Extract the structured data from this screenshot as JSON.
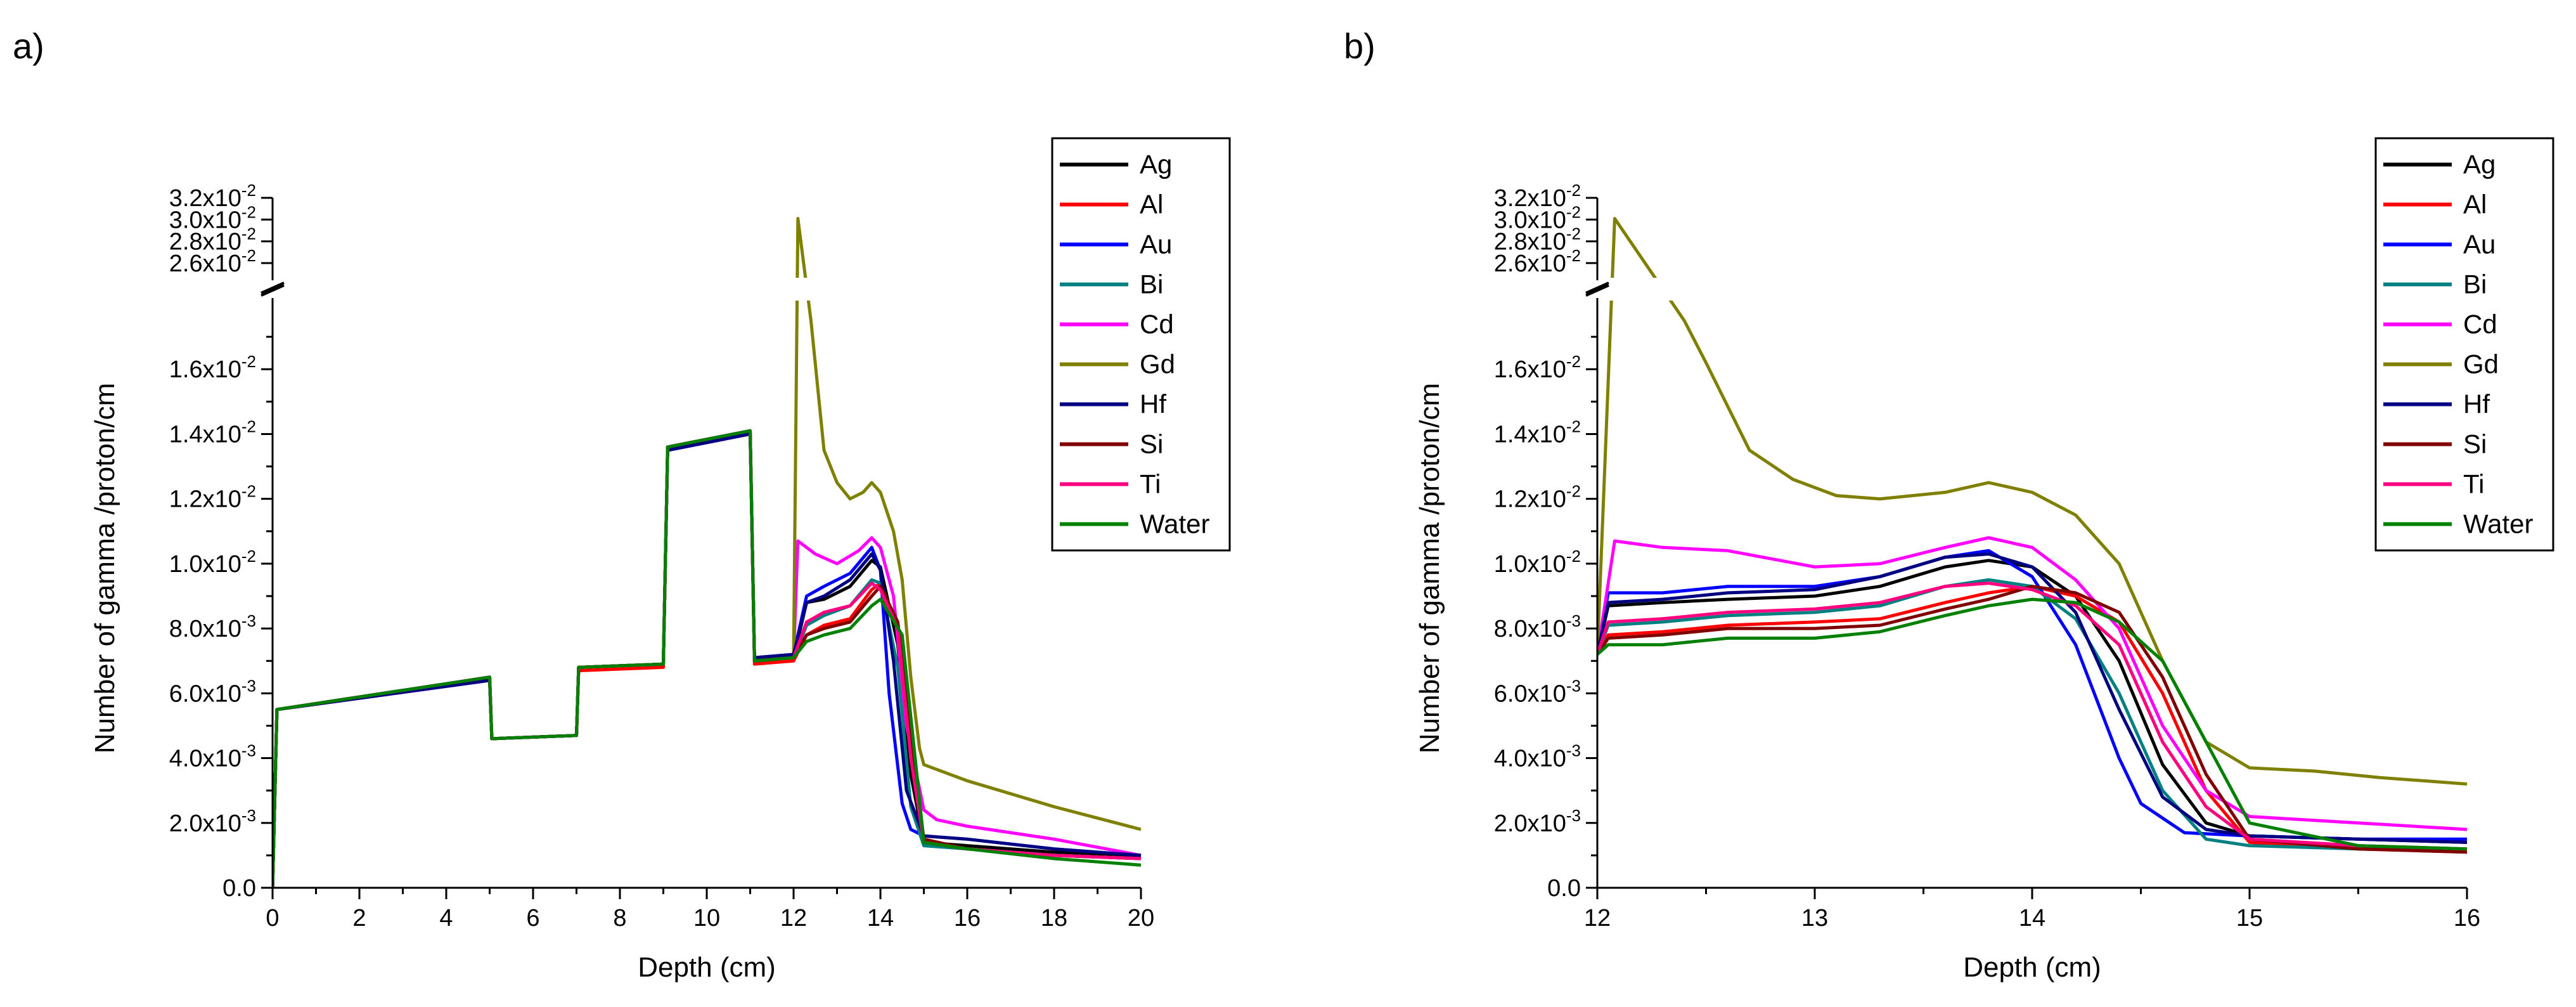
{
  "figure": {
    "ytick_labels": [
      {
        "value": 0,
        "label": "0.0"
      },
      {
        "value": 0.002,
        "mant": "2.0x10",
        "exp": "-3"
      },
      {
        "value": 0.004,
        "mant": "4.0x10",
        "exp": "-3"
      },
      {
        "value": 0.006,
        "mant": "6.0x10",
        "exp": "-3"
      },
      {
        "value": 0.008,
        "mant": "8.0x10",
        "exp": "-3"
      },
      {
        "value": 0.01,
        "mant": "1.0x10",
        "exp": "-2"
      },
      {
        "value": 0.012,
        "mant": "1.2x10",
        "exp": "-2"
      },
      {
        "value": 0.014,
        "mant": "1.4x10",
        "exp": "-2"
      },
      {
        "value": 0.016,
        "mant": "1.6x10",
        "exp": "-2"
      }
    ],
    "ytick_labels_upper": [
      {
        "value": 0.026,
        "mant": "2.6x10",
        "exp": "-2"
      },
      {
        "value": 0.028,
        "mant": "2.8x10",
        "exp": "-2"
      },
      {
        "value": 0.03,
        "mant": "3.0x10",
        "exp": "-2"
      },
      {
        "value": 0.032,
        "mant": "3.2x10",
        "exp": "-2"
      }
    ]
  },
  "chart_data": [
    {
      "type": "line",
      "panel_label": "a)",
      "xlabel": "Depth (cm)",
      "ylabel": "Number of gamma /proton/cm",
      "xlim": [
        0,
        20
      ],
      "ylim_lower": [
        0,
        0.018
      ],
      "ylim_upper": [
        0.025,
        0.032
      ],
      "axis_break": true,
      "xticks": [
        0,
        2,
        4,
        6,
        8,
        10,
        12,
        14,
        16,
        18,
        20
      ],
      "legend_position": "top-right",
      "grid": false,
      "series": [
        {
          "name": "Ag",
          "color": "#000000",
          "x": [
            0,
            0.1,
            5,
            5.05,
            7,
            7.05,
            9,
            9.1,
            11,
            11.1,
            12,
            12.3,
            12.7,
            13.3,
            13.8,
            14.0,
            14.4,
            14.7,
            15.0,
            16,
            18,
            20
          ],
          "y": [
            0,
            0.0055,
            0.0065,
            0.0046,
            0.0047,
            0.0068,
            0.0069,
            0.0136,
            0.0141,
            0.007,
            0.0071,
            0.0088,
            0.0089,
            0.0093,
            0.0101,
            0.0099,
            0.0075,
            0.0035,
            0.0014,
            0.0013,
            0.0011,
            0.001
          ]
        },
        {
          "name": "Al",
          "color": "#ff0000",
          "x": [
            0,
            0.1,
            5,
            5.05,
            7,
            7.05,
            9,
            9.1,
            11,
            11.1,
            12,
            12.3,
            12.7,
            13.3,
            13.8,
            14.0,
            14.4,
            14.7,
            15.0,
            16,
            18,
            20
          ],
          "y": [
            0,
            0.0055,
            0.0064,
            0.0046,
            0.0047,
            0.0067,
            0.0068,
            0.0135,
            0.014,
            0.0069,
            0.007,
            0.0078,
            0.0081,
            0.0083,
            0.0092,
            0.0094,
            0.008,
            0.0045,
            0.0014,
            0.0012,
            0.001,
            0.0009
          ]
        },
        {
          "name": "Au",
          "color": "#0000ff",
          "x": [
            0,
            0.1,
            5,
            5.05,
            7,
            7.05,
            9,
            9.1,
            11,
            11.1,
            12,
            12.3,
            12.7,
            13.3,
            13.8,
            14.0,
            14.2,
            14.5,
            14.7,
            15.0,
            16,
            18,
            20
          ],
          "y": [
            0,
            0.0055,
            0.0064,
            0.0046,
            0.0047,
            0.0068,
            0.0069,
            0.0135,
            0.014,
            0.0071,
            0.0072,
            0.009,
            0.0093,
            0.0097,
            0.0105,
            0.0098,
            0.006,
            0.0026,
            0.0018,
            0.0016,
            0.0015,
            0.0012,
            0.001
          ]
        },
        {
          "name": "Bi",
          "color": "#008080",
          "x": [
            0,
            0.1,
            5,
            5.05,
            7,
            7.05,
            9,
            9.1,
            11,
            11.1,
            12,
            12.3,
            12.7,
            13.3,
            13.8,
            14.0,
            14.4,
            14.7,
            15.0,
            16,
            18,
            20
          ],
          "y": [
            0,
            0.0055,
            0.0065,
            0.0046,
            0.0047,
            0.0068,
            0.0069,
            0.0136,
            0.0141,
            0.007,
            0.0071,
            0.0081,
            0.0084,
            0.0087,
            0.0095,
            0.0094,
            0.0068,
            0.0025,
            0.0013,
            0.0012,
            0.001,
            0.0009
          ]
        },
        {
          "name": "Cd",
          "color": "#ff00ff",
          "x": [
            0,
            0.1,
            5,
            5.05,
            7,
            7.05,
            9,
            9.1,
            11,
            11.1,
            12,
            12.1,
            12.5,
            13.0,
            13.5,
            13.8,
            14.0,
            14.3,
            14.6,
            15.0,
            15.3,
            16,
            18,
            20
          ],
          "y": [
            0,
            0.0055,
            0.0065,
            0.0046,
            0.0047,
            0.0068,
            0.0069,
            0.0136,
            0.0141,
            0.007,
            0.0071,
            0.0107,
            0.0103,
            0.01,
            0.0104,
            0.0108,
            0.0105,
            0.009,
            0.005,
            0.0024,
            0.0021,
            0.0019,
            0.0015,
            0.001
          ]
        },
        {
          "name": "Gd",
          "color": "#808000",
          "x": [
            0,
            0.1,
            5,
            5.05,
            7,
            7.05,
            9,
            9.1,
            11,
            11.1,
            12,
            12.1,
            12.4,
            12.7,
            13.0,
            13.3,
            13.6,
            13.8,
            14.0,
            14.3,
            14.5,
            14.7,
            14.9,
            15.0,
            16,
            18,
            20
          ],
          "y": [
            0,
            0.0055,
            0.0065,
            0.0046,
            0.0047,
            0.0068,
            0.0069,
            0.0136,
            0.0141,
            0.007,
            0.0071,
            0.0301,
            0.0175,
            0.0135,
            0.0125,
            0.012,
            0.0122,
            0.0125,
            0.0122,
            0.011,
            0.0095,
            0.0065,
            0.0043,
            0.0038,
            0.0033,
            0.0025,
            0.0018
          ]
        },
        {
          "name": "Hf",
          "color": "#000080",
          "x": [
            0,
            0.1,
            5,
            5.05,
            7,
            7.05,
            9,
            9.1,
            11,
            11.1,
            12,
            12.3,
            12.7,
            13.3,
            13.8,
            14.0,
            14.3,
            14.6,
            15.0,
            16,
            18,
            20
          ],
          "y": [
            0,
            0.0055,
            0.0064,
            0.0046,
            0.0047,
            0.0068,
            0.0069,
            0.0135,
            0.014,
            0.0071,
            0.0072,
            0.0088,
            0.009,
            0.0095,
            0.0103,
            0.0098,
            0.007,
            0.003,
            0.0016,
            0.0015,
            0.0012,
            0.001
          ]
        },
        {
          "name": "Si",
          "color": "#800000",
          "x": [
            0,
            0.1,
            5,
            5.05,
            7,
            7.05,
            9,
            9.1,
            11,
            11.1,
            12,
            12.3,
            12.7,
            13.3,
            13.8,
            14.0,
            14.4,
            14.7,
            15.0,
            16,
            18,
            20
          ],
          "y": [
            0,
            0.0055,
            0.0065,
            0.0046,
            0.0047,
            0.0068,
            0.0069,
            0.0136,
            0.0141,
            0.007,
            0.0071,
            0.0078,
            0.008,
            0.0082,
            0.009,
            0.0093,
            0.0082,
            0.0048,
            0.0015,
            0.0012,
            0.001,
            0.0009
          ]
        },
        {
          "name": "Ti",
          "color": "#ff0080",
          "x": [
            0,
            0.1,
            5,
            5.05,
            7,
            7.05,
            9,
            9.1,
            11,
            11.1,
            12,
            12.3,
            12.7,
            13.3,
            13.8,
            14.0,
            14.4,
            14.7,
            15.0,
            16,
            18,
            20
          ],
          "y": [
            0,
            0.0055,
            0.0065,
            0.0046,
            0.0047,
            0.0068,
            0.0069,
            0.0136,
            0.0141,
            0.007,
            0.0071,
            0.0082,
            0.0085,
            0.0087,
            0.0094,
            0.0092,
            0.008,
            0.004,
            0.0014,
            0.0012,
            0.001,
            0.0009
          ]
        },
        {
          "name": "Water",
          "color": "#008000",
          "x": [
            0,
            0.1,
            5,
            5.05,
            7,
            7.05,
            9,
            9.1,
            11,
            11.1,
            12,
            12.3,
            12.7,
            13.3,
            13.8,
            14.0,
            14.5,
            14.8,
            15.0,
            16,
            18,
            20
          ],
          "y": [
            0,
            0.0055,
            0.0065,
            0.0046,
            0.0047,
            0.0068,
            0.0069,
            0.0136,
            0.0141,
            0.007,
            0.0071,
            0.0076,
            0.0078,
            0.008,
            0.0087,
            0.0089,
            0.0078,
            0.004,
            0.0014,
            0.0012,
            0.0009,
            0.0007
          ]
        }
      ]
    },
    {
      "type": "line",
      "panel_label": "b)",
      "xlabel": "Depth (cm)",
      "ylabel": "Number of gamma /proton/cm",
      "xlim": [
        12,
        16
      ],
      "ylim_lower": [
        0,
        0.018
      ],
      "ylim_upper": [
        0.025,
        0.032
      ],
      "axis_break": true,
      "xticks": [
        12,
        13,
        14,
        15,
        16
      ],
      "legend_position": "top-right",
      "grid": false,
      "series": [
        {
          "name": "Ag",
          "color": "#000000",
          "x": [
            12.0,
            12.05,
            12.3,
            12.6,
            13.0,
            13.3,
            13.6,
            13.8,
            14.0,
            14.2,
            14.4,
            14.6,
            14.8,
            15.0,
            15.5,
            16.0
          ],
          "y": [
            0.0072,
            0.0087,
            0.0088,
            0.0089,
            0.009,
            0.0093,
            0.0099,
            0.0101,
            0.0099,
            0.009,
            0.007,
            0.0038,
            0.002,
            0.0016,
            0.0015,
            0.0014
          ]
        },
        {
          "name": "Al",
          "color": "#ff0000",
          "x": [
            12.0,
            12.05,
            12.3,
            12.6,
            13.0,
            13.3,
            13.6,
            13.8,
            14.0,
            14.2,
            14.4,
            14.6,
            14.8,
            15.0,
            15.5,
            16.0
          ],
          "y": [
            0.0072,
            0.0078,
            0.0079,
            0.0081,
            0.0082,
            0.0083,
            0.0088,
            0.0091,
            0.0093,
            0.009,
            0.0082,
            0.006,
            0.003,
            0.0014,
            0.0012,
            0.0011
          ]
        },
        {
          "name": "Au",
          "color": "#0000ff",
          "x": [
            12.0,
            12.05,
            12.3,
            12.6,
            13.0,
            13.3,
            13.6,
            13.8,
            14.0,
            14.2,
            14.4,
            14.5,
            14.7,
            15.0,
            15.5,
            16.0
          ],
          "y": [
            0.0072,
            0.0091,
            0.0091,
            0.0093,
            0.0093,
            0.0096,
            0.0102,
            0.0104,
            0.0096,
            0.0075,
            0.004,
            0.0026,
            0.0017,
            0.0016,
            0.0015,
            0.0015
          ]
        },
        {
          "name": "Bi",
          "color": "#008080",
          "x": [
            12.0,
            12.05,
            12.3,
            12.6,
            13.0,
            13.3,
            13.6,
            13.8,
            14.0,
            14.2,
            14.4,
            14.6,
            14.8,
            15.0,
            15.5,
            16.0
          ],
          "y": [
            0.0072,
            0.0081,
            0.0082,
            0.0084,
            0.0085,
            0.0087,
            0.0093,
            0.0095,
            0.0093,
            0.0083,
            0.006,
            0.003,
            0.0015,
            0.0013,
            0.0012,
            0.0012
          ]
        },
        {
          "name": "Cd",
          "color": "#ff00ff",
          "x": [
            12.0,
            12.08,
            12.3,
            12.6,
            13.0,
            13.3,
            13.6,
            13.8,
            14.0,
            14.2,
            14.4,
            14.6,
            14.8,
            15.0,
            15.5,
            16.0
          ],
          "y": [
            0.0072,
            0.0107,
            0.0105,
            0.0104,
            0.0099,
            0.01,
            0.0105,
            0.0108,
            0.0105,
            0.0095,
            0.008,
            0.005,
            0.003,
            0.0022,
            0.002,
            0.0018
          ]
        },
        {
          "name": "Gd",
          "color": "#808000",
          "x": [
            12.0,
            12.08,
            12.4,
            12.5,
            12.7,
            12.9,
            13.1,
            13.3,
            13.6,
            13.8,
            14.0,
            14.2,
            14.4,
            14.6,
            14.8,
            15.0,
            15.3,
            15.6,
            16.0
          ],
          "y": [
            0.0072,
            0.0301,
            0.0175,
            0.0162,
            0.0135,
            0.0126,
            0.0121,
            0.012,
            0.0122,
            0.0125,
            0.0122,
            0.0115,
            0.01,
            0.007,
            0.0045,
            0.0037,
            0.0036,
            0.0034,
            0.0032
          ]
        },
        {
          "name": "Hf",
          "color": "#000080",
          "x": [
            12.0,
            12.05,
            12.3,
            12.6,
            13.0,
            13.3,
            13.6,
            13.8,
            14.0,
            14.2,
            14.4,
            14.6,
            14.8,
            15.0,
            15.5,
            16.0
          ],
          "y": [
            0.0072,
            0.0088,
            0.0089,
            0.0091,
            0.0092,
            0.0096,
            0.0102,
            0.0103,
            0.0099,
            0.0085,
            0.0055,
            0.0028,
            0.0018,
            0.0016,
            0.0015,
            0.0014
          ]
        },
        {
          "name": "Si",
          "color": "#800000",
          "x": [
            12.0,
            12.05,
            12.3,
            12.6,
            13.0,
            13.3,
            13.6,
            13.8,
            14.0,
            14.2,
            14.4,
            14.6,
            14.8,
            15.0,
            15.5,
            16.0
          ],
          "y": [
            0.0072,
            0.0077,
            0.0078,
            0.008,
            0.008,
            0.0081,
            0.0086,
            0.0089,
            0.0093,
            0.0091,
            0.0085,
            0.0065,
            0.0035,
            0.0015,
            0.0012,
            0.0011
          ]
        },
        {
          "name": "Ti",
          "color": "#ff0080",
          "x": [
            12.0,
            12.05,
            12.3,
            12.6,
            13.0,
            13.3,
            13.6,
            13.8,
            14.0,
            14.2,
            14.4,
            14.6,
            14.8,
            15.0,
            15.5,
            16.0
          ],
          "y": [
            0.0072,
            0.0082,
            0.0083,
            0.0085,
            0.0086,
            0.0088,
            0.0093,
            0.0094,
            0.0092,
            0.0087,
            0.0075,
            0.0045,
            0.0025,
            0.0015,
            0.0013,
            0.0012
          ]
        },
        {
          "name": "Water",
          "color": "#008000",
          "x": [
            12.0,
            12.05,
            12.3,
            12.6,
            13.0,
            13.3,
            13.6,
            13.8,
            14.0,
            14.2,
            14.4,
            14.6,
            14.8,
            15.0,
            15.5,
            16.0
          ],
          "y": [
            0.0072,
            0.0075,
            0.0075,
            0.0077,
            0.0077,
            0.0079,
            0.0084,
            0.0087,
            0.0089,
            0.0088,
            0.0082,
            0.007,
            0.0045,
            0.002,
            0.0013,
            0.0012
          ]
        }
      ]
    }
  ]
}
